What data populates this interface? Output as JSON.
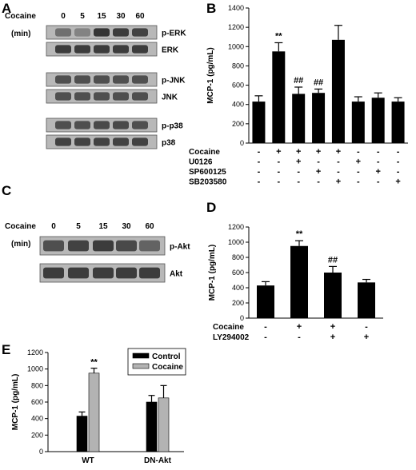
{
  "panels": {
    "A": {
      "label": "A",
      "time_label": "Cocaine",
      "time_unit": "(min)",
      "time_points": [
        "0",
        "5",
        "15",
        "30",
        "60"
      ],
      "blots": [
        {
          "label": "p-ERK",
          "intensity": [
            0.45,
            0.3,
            0.9,
            0.85,
            0.8
          ]
        },
        {
          "label": "ERK",
          "intensity": [
            0.85,
            0.85,
            0.85,
            0.85,
            0.85
          ]
        },
        {
          "label": "p-JNK",
          "intensity": [
            0.7,
            0.7,
            0.7,
            0.7,
            0.7
          ]
        },
        {
          "label": "JNK",
          "intensity": [
            0.7,
            0.7,
            0.7,
            0.7,
            0.7
          ]
        },
        {
          "label": "p-p38",
          "intensity": [
            0.7,
            0.7,
            0.75,
            0.75,
            0.7
          ]
        },
        {
          "label": "p38",
          "intensity": [
            0.8,
            0.8,
            0.8,
            0.8,
            0.8
          ]
        }
      ]
    },
    "C": {
      "label": "C",
      "time_label": "Cocaine",
      "time_unit": "(min)",
      "time_points": [
        "0",
        "5",
        "15",
        "30",
        "60"
      ],
      "blots": [
        {
          "label": "p-Akt",
          "intensity": [
            0.7,
            0.8,
            0.85,
            0.75,
            0.55
          ]
        },
        {
          "label": "Akt",
          "intensity": [
            0.85,
            0.85,
            0.85,
            0.85,
            0.85
          ]
        }
      ]
    }
  },
  "chart_data": [
    {
      "panel": "B",
      "type": "bar",
      "ylabel": "MCP-1 (pg/mL)",
      "ylim": [
        0,
        1400
      ],
      "yticks": [
        0,
        200,
        400,
        600,
        800,
        1000,
        1200,
        1400
      ],
      "values": [
        430,
        950,
        510,
        520,
        1070,
        430,
        470,
        430
      ],
      "errors": [
        60,
        90,
        70,
        40,
        150,
        50,
        50,
        40
      ],
      "annotations": [
        "",
        "**",
        "##",
        "##",
        "",
        "",
        "",
        ""
      ],
      "treatments": [
        {
          "label": "Cocaine",
          "signs": [
            "-",
            "+",
            "+",
            "+",
            "+",
            "-",
            "-",
            "-"
          ]
        },
        {
          "label": "U0126",
          "signs": [
            "-",
            "-",
            "+",
            "-",
            "-",
            "+",
            "-",
            "-"
          ]
        },
        {
          "label": "SP600125",
          "signs": [
            "-",
            "-",
            "-",
            "+",
            "-",
            "-",
            "+",
            "-"
          ]
        },
        {
          "label": "SB203580",
          "signs": [
            "-",
            "-",
            "-",
            "-",
            "+",
            "-",
            "-",
            "+"
          ]
        }
      ]
    },
    {
      "panel": "D",
      "type": "bar",
      "ylabel": "MCP-1 (pg/mL)",
      "ylim": [
        0,
        1200
      ],
      "yticks": [
        0,
        200,
        400,
        600,
        800,
        1000,
        1200
      ],
      "values": [
        430,
        950,
        600,
        470
      ],
      "errors": [
        50,
        70,
        80,
        40
      ],
      "annotations": [
        "",
        "**",
        "##",
        ""
      ],
      "treatments": [
        {
          "label": "Cocaine",
          "signs": [
            "-",
            "+",
            "+",
            "-"
          ]
        },
        {
          "label": "LY294002",
          "signs": [
            "-",
            "-",
            "+",
            "+"
          ]
        }
      ]
    },
    {
      "panel": "E",
      "type": "bar",
      "ylabel": "MCP-1 (pg/mL)",
      "ylim": [
        0,
        1200
      ],
      "yticks": [
        0,
        200,
        400,
        600,
        800,
        1000,
        1200
      ],
      "categories": [
        "WT",
        "DN-Akt"
      ],
      "series": [
        {
          "name": "Control",
          "color": "#000000",
          "values": [
            430,
            600
          ],
          "errors": [
            50,
            80
          ]
        },
        {
          "name": "Cocaine",
          "color": "#b3b3b3",
          "values": [
            950,
            650
          ],
          "errors": [
            60,
            150
          ]
        }
      ],
      "annotations": {
        "WT": "**"
      },
      "legend": "top-right"
    }
  ]
}
